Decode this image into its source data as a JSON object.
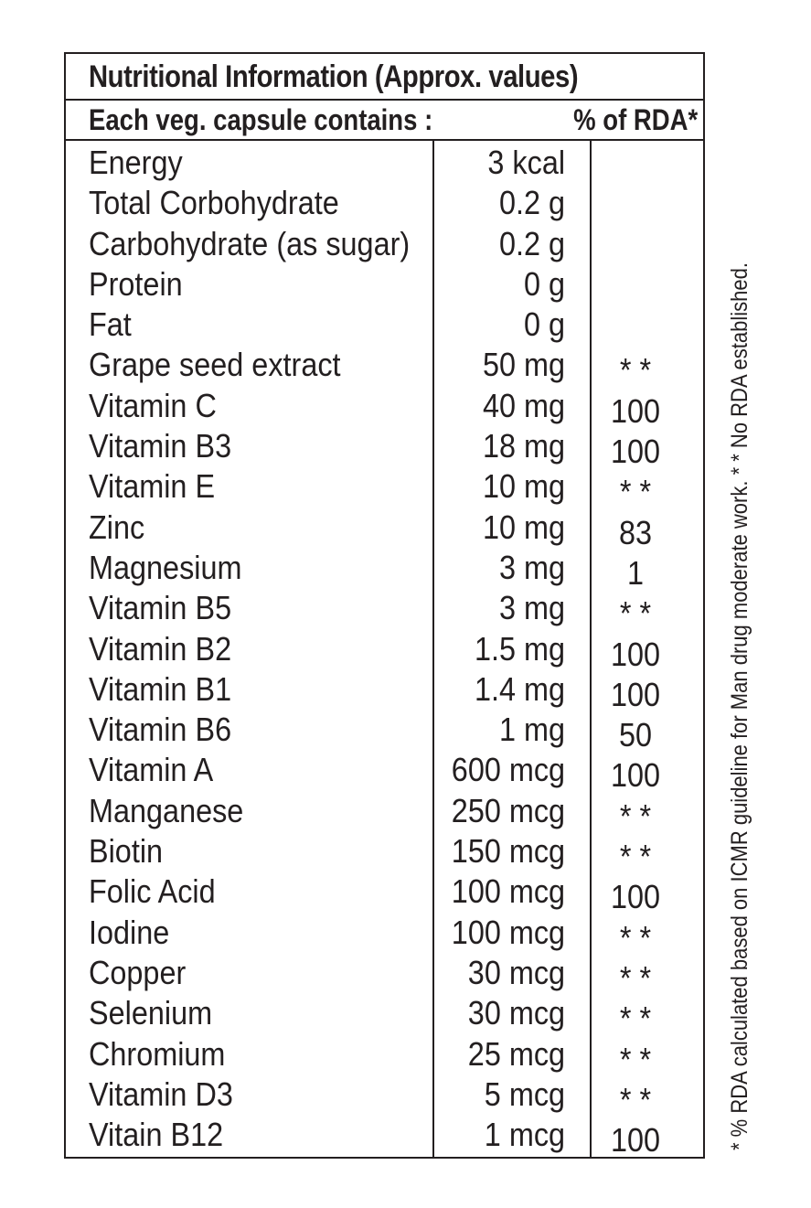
{
  "header": {
    "title": "Nutritional Information (Approx. values)",
    "subtitle_left": "Each veg. capsule contains :",
    "subtitle_right": "% of RDA*"
  },
  "rows": [
    {
      "name": "Energy",
      "amount": "3 kcal",
      "rda": ""
    },
    {
      "name": "Total Corbohydrate",
      "amount": "0.2 g",
      "rda": ""
    },
    {
      "name": "Carbohydrate (as sugar)",
      "amount": "0.2 g",
      "rda": ""
    },
    {
      "name": "Protein",
      "amount": "0 g",
      "rda": ""
    },
    {
      "name": "Fat",
      "amount": "0 g",
      "rda": ""
    },
    {
      "name": "Grape seed extract",
      "amount": "50 mg",
      "rda": "* *"
    },
    {
      "name": "Vitamin C",
      "amount": "40 mg",
      "rda": "100"
    },
    {
      "name": "Vitamin B3",
      "amount": "18 mg",
      "rda": "100"
    },
    {
      "name": "Vitamin E",
      "amount": "10 mg",
      "rda": "* *"
    },
    {
      "name": "Zinc",
      "amount": "10 mg",
      "rda": "83"
    },
    {
      "name": "Magnesium",
      "amount": "3 mg",
      "rda": "1"
    },
    {
      "name": "Vitamin B5",
      "amount": "3 mg",
      "rda": "* *"
    },
    {
      "name": "Vitamin B2",
      "amount": "1.5 mg",
      "rda": "100"
    },
    {
      "name": "Vitamin B1",
      "amount": "1.4 mg",
      "rda": "100"
    },
    {
      "name": "Vitamin B6",
      "amount": "1 mg",
      "rda": "50"
    },
    {
      "name": "Vitamin  A",
      "amount": "600 mcg",
      "rda": "100"
    },
    {
      "name": "Manganese",
      "amount": "250 mcg",
      "rda": "* *"
    },
    {
      "name": "Biotin",
      "amount": "150 mcg",
      "rda": "* *"
    },
    {
      "name": "Folic Acid",
      "amount": "100 mcg",
      "rda": "100"
    },
    {
      "name": "Iodine",
      "amount": "100 mcg",
      "rda": "* *"
    },
    {
      "name": "Copper",
      "amount": "30 mcg",
      "rda": "* *"
    },
    {
      "name": "Selenium",
      "amount": "30 mcg",
      "rda": "* *"
    },
    {
      "name": "Chromium",
      "amount": "25 mcg",
      "rda": "* *"
    },
    {
      "name": "Vitamin D3",
      "amount": "5 mcg",
      "rda": "* *"
    },
    {
      "name": "Vitain B12",
      "amount": "1 mcg",
      "rda": "100"
    }
  ],
  "footnote": "* % RDA calculated based on ICMR guideline for Man drug moderate work.  * * No RDA established."
}
